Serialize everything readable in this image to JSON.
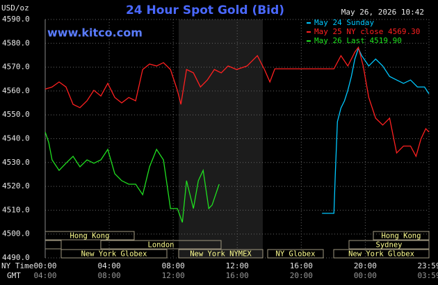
{
  "chart_data": {
    "type": "line",
    "title": "24 Hour Spot Gold (Bid)",
    "subtitle": "www.kitco.com",
    "timestamp": "May 26, 2026 10:42",
    "ylabel": "USD/oz",
    "xlabel": "NY Time",
    "x2label": "GMT",
    "xlim": [
      0,
      23.98
    ],
    "ylim": [
      4490,
      4590
    ],
    "yticks": [
      {
        "value": 4490,
        "label": "4490.0"
      },
      {
        "value": 4500,
        "label": "4500.0"
      },
      {
        "value": 4510,
        "label": "4510.0"
      },
      {
        "value": 4520,
        "label": "4520.0"
      },
      {
        "value": 4530,
        "label": "4530.0"
      },
      {
        "value": 4540,
        "label": "4540.0"
      },
      {
        "value": 4550,
        "label": "4550.0"
      },
      {
        "value": 4560,
        "label": "4560.0"
      },
      {
        "value": 4570,
        "label": "4570.0"
      },
      {
        "value": 4580,
        "label": "4580.0"
      },
      {
        "value": 4590,
        "label": "4590.0"
      }
    ],
    "xticks": [
      {
        "value": 0,
        "label": "00:00"
      },
      {
        "value": 4,
        "label": "04:00"
      },
      {
        "value": 8,
        "label": "08:00"
      },
      {
        "value": 12,
        "label": "12:00"
      },
      {
        "value": 16,
        "label": "16:00"
      },
      {
        "value": 20,
        "label": "20:00"
      },
      {
        "value": 23.98,
        "label": "23:59"
      }
    ],
    "x2ticks": [
      {
        "value": 0,
        "label": "04:00"
      },
      {
        "value": 4,
        "label": "08:00"
      },
      {
        "value": 8,
        "label": "12:00"
      },
      {
        "value": 12,
        "label": "16:00"
      },
      {
        "value": 16,
        "label": "20:00"
      },
      {
        "value": 20,
        "label": "00:00"
      },
      {
        "value": 23.98,
        "label": "03:59"
      }
    ],
    "grid": true,
    "sessions": [
      "Hong Kong",
      "Hong Kong",
      "London",
      "Sydney",
      "New York Globex",
      "New York NYMEX",
      "NY Globex",
      "New York Globex"
    ],
    "series": [
      {
        "name": "May 24 Sunday",
        "color": "#00c8ff",
        "x": [
          17.3,
          18.04,
          18.13,
          18.26,
          18.48,
          18.7,
          18.91,
          19.13,
          19.35,
          19.57,
          19.78,
          20.22,
          20.65,
          21.09,
          21.52,
          21.96,
          22.39,
          22.83,
          23.26,
          23.7,
          23.98
        ],
        "values": [
          4508.7,
          4508.7,
          4525.3,
          4547.1,
          4552.9,
          4555.9,
          4560.3,
          4566.1,
          4573.4,
          4577.8,
          4574.8,
          4570.5,
          4573.4,
          4570.5,
          4566.1,
          4564.6,
          4563.2,
          4564.6,
          4561.7,
          4561.7,
          4558.8
        ]
      },
      {
        "name": "May 25 NY close 4569.30",
        "color": "#ff2020",
        "x": [
          0,
          0.43,
          0.87,
          1.3,
          1.74,
          2.17,
          2.61,
          3.04,
          3.48,
          3.91,
          4.35,
          4.78,
          5.22,
          5.65,
          6.09,
          6.52,
          6.96,
          7.39,
          7.83,
          8.26,
          8.48,
          8.83,
          9.26,
          9.7,
          10.13,
          10.57,
          11,
          11.43,
          11.96,
          12.61,
          13.26,
          13.7,
          14.04,
          14.35,
          18.04,
          18.48,
          18.91,
          19.35,
          19.57,
          19.87,
          20.22,
          20.65,
          21.09,
          21.52,
          21.96,
          22.39,
          22.83,
          23.17,
          23.48,
          23.78,
          23.98
        ],
        "values": [
          4560.8,
          4561.7,
          4563.8,
          4561.7,
          4554.4,
          4553.0,
          4555.9,
          4560.3,
          4557.9,
          4563.2,
          4557.3,
          4555.0,
          4557.3,
          4555.9,
          4569.0,
          4571.3,
          4570.5,
          4571.9,
          4569.0,
          4560.3,
          4554.4,
          4569.0,
          4567.6,
          4561.7,
          4564.6,
          4569.0,
          4567.6,
          4570.5,
          4569.0,
          4570.5,
          4574.8,
          4569.0,
          4563.8,
          4569.3,
          4569.3,
          4574.8,
          4570.5,
          4576.3,
          4578.3,
          4570.5,
          4557.3,
          4548.6,
          4545.7,
          4548.6,
          4534.0,
          4536.9,
          4536.9,
          4532.6,
          4539.9,
          4544.2,
          4542.8
        ]
      },
      {
        "name": "May 26 Last 4519.90",
        "color": "#20e020",
        "x": [
          0,
          0.22,
          0.43,
          0.87,
          1.3,
          1.74,
          2.17,
          2.61,
          3.04,
          3.48,
          3.91,
          4.35,
          4.78,
          5.22,
          5.65,
          6.09,
          6.52,
          6.96,
          7.39,
          7.83,
          8.26,
          8.57,
          8.83,
          9.26,
          9.57,
          9.87,
          10.22,
          10.43,
          10.87
        ],
        "values": [
          4542.8,
          4538.4,
          4531.1,
          4526.7,
          4529.7,
          4532.6,
          4528.2,
          4531.1,
          4529.7,
          4531.1,
          4535.5,
          4525.3,
          4522.4,
          4520.9,
          4520.9,
          4516.5,
          4528.2,
          4535.5,
          4531.1,
          4510.7,
          4510.7,
          4504.9,
          4522.4,
          4510.7,
          4522.4,
          4526.7,
          4510.7,
          4512.2,
          4520.9
        ]
      }
    ]
  }
}
